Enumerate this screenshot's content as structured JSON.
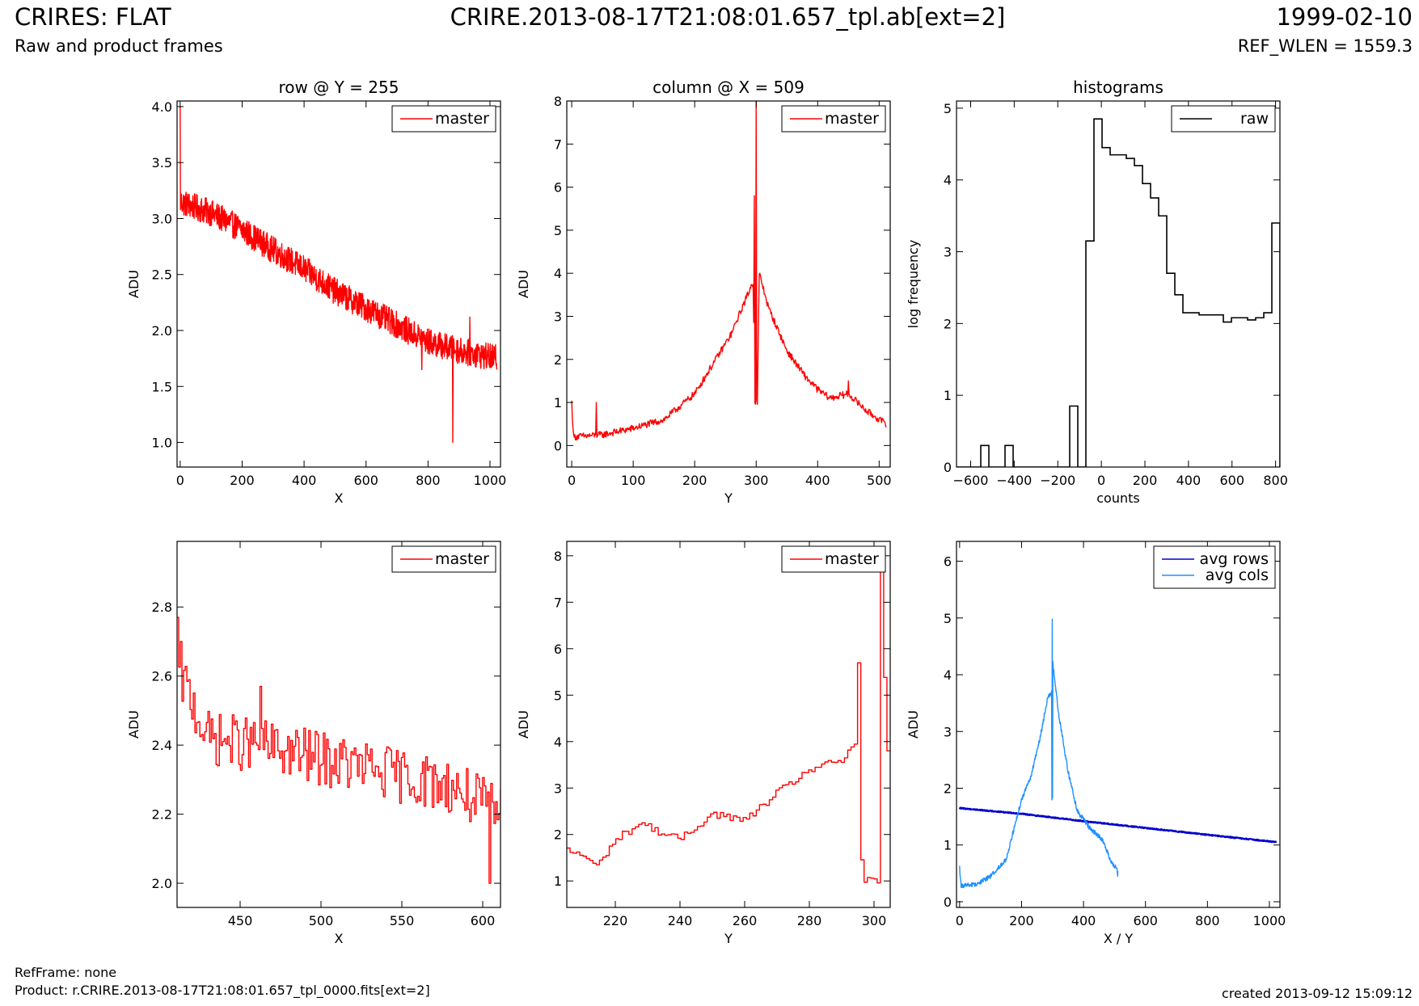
{
  "header": {
    "title_left": "CRIRES: FLAT",
    "title_center": "CRIRE.2013-08-17T21:08:01.657_tpl.ab[ext=2]",
    "title_right": "1999-02-10",
    "subtitle_left": "Raw and product frames",
    "subtitle_right": "REF_WLEN = 1559.3"
  },
  "footer": {
    "refframe": "RefFrame: none",
    "product": "Product: r.CRIRE.2013-08-17T21:08:01.657_tpl_0000.fits[ext=2]",
    "created": "created 2013-09-12 15:09:12"
  },
  "colors": {
    "master": "#ff0000",
    "raw": "#000000",
    "avg_rows": "#0000cc",
    "avg_cols": "#1e90ff"
  },
  "chart_data": [
    {
      "type": "line",
      "title": "row @ Y = 255",
      "xlabel": "X",
      "ylabel": "ADU",
      "xlim": [
        -10,
        1034
      ],
      "ylim": [
        0.78,
        4.05
      ],
      "xticks": [
        0,
        200,
        400,
        600,
        800,
        1000
      ],
      "yticks": [
        1.0,
        1.5,
        2.0,
        2.5,
        3.0,
        3.5,
        4.0
      ],
      "ytick_format": 1,
      "legend": "top-right",
      "series": [
        {
          "name": "master",
          "color": "#ff0000",
          "trend": [
            [
              0,
              3.15
            ],
            [
              100,
              3.05
            ],
            [
              200,
              2.9
            ],
            [
              300,
              2.72
            ],
            [
              400,
              2.55
            ],
            [
              500,
              2.35
            ],
            [
              600,
              2.2
            ],
            [
              700,
              2.05
            ],
            [
              800,
              1.9
            ],
            [
              900,
              1.82
            ],
            [
              1023,
              1.75
            ]
          ],
          "noise": 0.12,
          "n_points": 1024,
          "spikes": [
            [
              0,
              4.0
            ],
            [
              880,
              1.0
            ],
            [
              935,
              2.12
            ],
            [
              780,
              1.65
            ]
          ]
        }
      ]
    },
    {
      "type": "line",
      "title": "column @ X = 509",
      "xlabel": "Y",
      "ylabel": "ADU",
      "xlim": [
        -8,
        518
      ],
      "ylim": [
        -0.5,
        8.0
      ],
      "xticks": [
        0,
        100,
        200,
        300,
        400,
        500
      ],
      "yticks": [
        0,
        1,
        2,
        3,
        4,
        5,
        6,
        7,
        8
      ],
      "legend": "top-right",
      "series": [
        {
          "name": "master",
          "color": "#ff0000",
          "trend": [
            [
              0,
              1.0
            ],
            [
              3,
              0.2
            ],
            [
              50,
              0.25
            ],
            [
              100,
              0.4
            ],
            [
              150,
              0.6
            ],
            [
              200,
              1.2
            ],
            [
              230,
              1.9
            ],
            [
              260,
              2.6
            ],
            [
              280,
              3.3
            ],
            [
              295,
              3.8
            ],
            [
              298,
              1.0
            ],
            [
              302,
              1.0
            ],
            [
              305,
              4.0
            ],
            [
              320,
              3.2
            ],
            [
              350,
              2.2
            ],
            [
              380,
              1.6
            ],
            [
              400,
              1.3
            ],
            [
              420,
              1.1
            ],
            [
              450,
              1.2
            ],
            [
              480,
              0.8
            ],
            [
              511,
              0.5
            ]
          ],
          "noise": 0.08,
          "n_points": 512,
          "spikes": [
            [
              40,
              1.0
            ],
            [
              297,
              5.8
            ],
            [
              300,
              8.0
            ],
            [
              450,
              1.5
            ]
          ]
        }
      ]
    },
    {
      "type": "bar",
      "title": "histograms",
      "xlabel": "counts",
      "ylabel": "log frequency",
      "xlim": [
        -665,
        820
      ],
      "ylim": [
        0,
        5.1
      ],
      "xticks": [
        -600,
        -400,
        -200,
        0,
        200,
        400,
        600,
        800
      ],
      "yticks": [
        0,
        1,
        2,
        3,
        4,
        5
      ],
      "legend": "top-right",
      "series": [
        {
          "name": "raw",
          "color": "#000000",
          "step": true,
          "bin_edges": [
            -665,
            -627.9,
            -590.8,
            -553.6,
            -516.5,
            -479.4,
            -442.3,
            -405.1,
            -368,
            -330.9,
            -293.8,
            -256.6,
            -219.5,
            -182.4,
            -145.3,
            -108.1,
            -71,
            -33.9,
            3.3,
            40.4,
            77.5,
            114.6,
            151.8,
            188.9,
            226,
            263.1,
            300.3,
            337.4,
            374.5,
            411.6,
            448.8,
            485.9,
            523,
            560.1,
            597.3,
            634.4,
            671.5,
            708.6,
            745.8,
            782.9,
            820
          ],
          "values": [
            0,
            0,
            0,
            0.3,
            0,
            0,
            0.3,
            0,
            0,
            0,
            0,
            0,
            0,
            0,
            0.85,
            0,
            3.15,
            4.85,
            4.45,
            4.35,
            4.35,
            4.3,
            4.2,
            3.95,
            3.75,
            3.5,
            2.7,
            2.4,
            2.15,
            2.15,
            2.12,
            2.12,
            2.12,
            2.02,
            2.08,
            2.08,
            2.05,
            2.08,
            2.15,
            3.4
          ]
        }
      ]
    },
    {
      "type": "line",
      "title": "",
      "xlabel": "X",
      "ylabel": "ADU",
      "xlim": [
        411,
        611
      ],
      "ylim": [
        1.93,
        2.99
      ],
      "xticks": [
        450,
        500,
        550,
        600
      ],
      "yticks": [
        2.0,
        2.2,
        2.4,
        2.6,
        2.8
      ],
      "ytick_format": 1,
      "legend": "top-right",
      "series": [
        {
          "name": "master",
          "color": "#ff0000",
          "step": true,
          "trend": [
            [
              411,
              2.62
            ],
            [
              430,
              2.42
            ],
            [
              460,
              2.4
            ],
            [
              500,
              2.36
            ],
            [
              540,
              2.32
            ],
            [
              580,
              2.28
            ],
            [
              611,
              2.2
            ]
          ],
          "noise": 0.08,
          "n_points": 200,
          "spikes": [
            [
              411,
              2.77
            ],
            [
              413,
              2.7
            ],
            [
              462,
              2.57
            ],
            [
              604,
              2.0
            ]
          ]
        }
      ]
    },
    {
      "type": "line",
      "title": "",
      "xlabel": "Y",
      "ylabel": "ADU",
      "xlim": [
        205,
        305
      ],
      "ylim": [
        0.43,
        8.31
      ],
      "xticks": [
        220,
        240,
        260,
        280,
        300
      ],
      "yticks": [
        1,
        2,
        3,
        4,
        5,
        6,
        7,
        8
      ],
      "legend": "top-right",
      "series": [
        {
          "name": "master",
          "color": "#ff0000",
          "step": true,
          "trend": [
            [
              205,
              1.65
            ],
            [
              210,
              1.55
            ],
            [
              214,
              1.3
            ],
            [
              220,
              1.9
            ],
            [
              228,
              2.25
            ],
            [
              235,
              2.0
            ],
            [
              240,
              1.9
            ],
            [
              250,
              2.45
            ],
            [
              260,
              2.3
            ],
            [
              270,
              2.9
            ],
            [
              280,
              3.4
            ],
            [
              290,
              3.6
            ],
            [
              294,
              4.0
            ],
            [
              295,
              5.8
            ],
            [
              296,
              1.0
            ],
            [
              301,
              1.0
            ],
            [
              302,
              8.3
            ],
            [
              303,
              5.3
            ],
            [
              304,
              3.8
            ],
            [
              305,
              3.8
            ]
          ],
          "noise": 0.08,
          "n_points": 100,
          "spikes": []
        }
      ]
    },
    {
      "type": "line",
      "title": "",
      "xlabel": "X / Y",
      "ylabel": "ADU",
      "xlim": [
        -10,
        1034
      ],
      "ylim": [
        -0.1,
        6.35
      ],
      "xticks": [
        0,
        200,
        400,
        600,
        800,
        1000
      ],
      "yticks": [
        0,
        1,
        2,
        3,
        4,
        5,
        6
      ],
      "legend": "top-right",
      "series": [
        {
          "name": "avg rows",
          "color": "#0000cc",
          "trend": [
            [
              0,
              1.65
            ],
            [
              200,
              1.55
            ],
            [
              400,
              1.42
            ],
            [
              600,
              1.3
            ],
            [
              800,
              1.18
            ],
            [
              1023,
              1.05
            ]
          ],
          "noise": 0.01,
          "n_points": 1024,
          "spikes": []
        },
        {
          "name": "avg cols",
          "color": "#1e90ff",
          "trend": [
            [
              0,
              0.6
            ],
            [
              5,
              0.28
            ],
            [
              50,
              0.3
            ],
            [
              100,
              0.45
            ],
            [
              150,
              0.75
            ],
            [
              200,
              1.8
            ],
            [
              230,
              2.2
            ],
            [
              260,
              2.9
            ],
            [
              285,
              3.6
            ],
            [
              297,
              3.7
            ],
            [
              298,
              1.8
            ],
            [
              299,
              5.0
            ],
            [
              300,
              1.8
            ],
            [
              301,
              4.2
            ],
            [
              320,
              3.3
            ],
            [
              350,
              2.3
            ],
            [
              380,
              1.6
            ],
            [
              420,
              1.3
            ],
            [
              460,
              1.1
            ],
            [
              490,
              0.7
            ],
            [
              511,
              0.55
            ]
          ],
          "noise": 0.04,
          "n_points": 512,
          "spikes": [
            [
              510,
              0.45
            ]
          ]
        }
      ]
    }
  ]
}
